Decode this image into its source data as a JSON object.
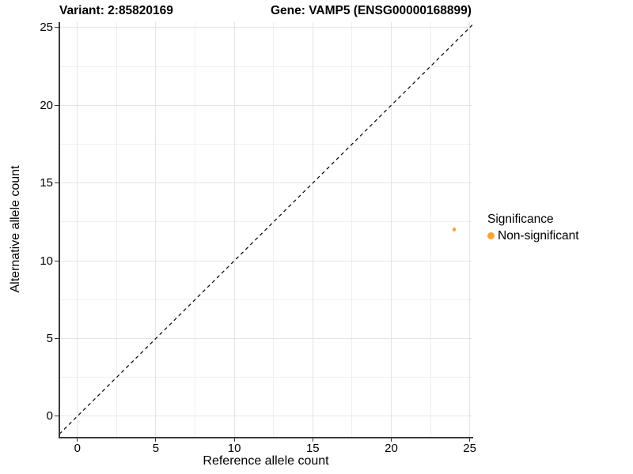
{
  "chart_data": {
    "type": "scatter",
    "title_left": "Variant: 2:85820169",
    "title_right": "Gene: VAMP5 (ENSG00000168899)",
    "xlabel": "Reference allele count",
    "ylabel": "Alternative allele count",
    "x_ticks": [
      0,
      5,
      10,
      15,
      20,
      25
    ],
    "y_ticks": [
      0,
      5,
      10,
      15,
      20,
      25
    ],
    "x_minor_ticks": [
      2.5,
      7.5,
      12.5,
      17.5,
      22.5
    ],
    "y_minor_ticks": [
      2.5,
      7.5,
      12.5,
      17.5,
      22.5
    ],
    "xlim": [
      -1.15,
      25.17
    ],
    "ylim": [
      -1.33,
      25.35
    ],
    "grid": "major+minor",
    "reference_line": {
      "type": "identity",
      "style": "dashed",
      "color": "#000000"
    },
    "series": [
      {
        "name": "Non-significant",
        "color": "#F9A337",
        "points": [
          {
            "x": 24,
            "y": 12
          }
        ]
      }
    ],
    "legend": {
      "title": "Significance",
      "position": "right",
      "items": [
        {
          "label": "Non-significant",
          "color": "#F9A337"
        }
      ]
    }
  },
  "colors": {
    "background": "#FFFFFF",
    "axis_line": "#3A3A3A",
    "grid_major": "#E4E4E4",
    "grid_minor": "#EFEFEF",
    "text": "#000000"
  }
}
